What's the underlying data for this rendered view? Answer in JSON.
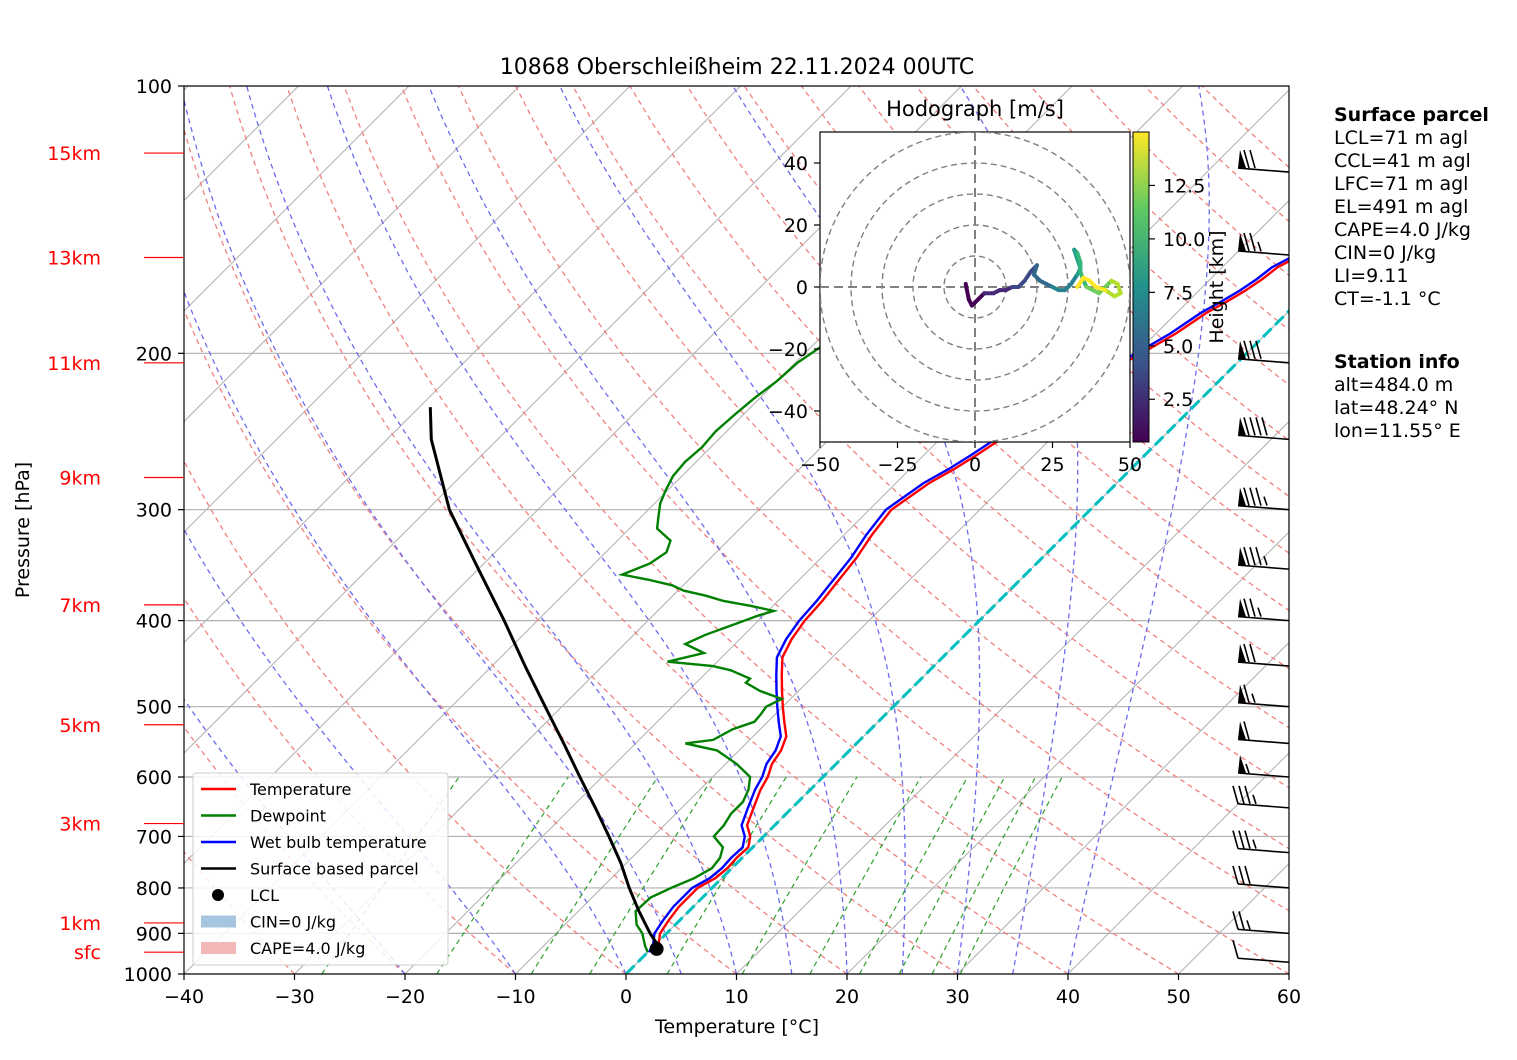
{
  "chart_data": {
    "type": "skew-t log-p sounding",
    "title": "10868 Oberschleißheim 22.11.2024 00UTC",
    "xlabel": "Temperature [°C]",
    "ylabel": "Pressure [hPa]",
    "x_range": [
      -40,
      60
    ],
    "pressure_range_hpa": [
      1000,
      100
    ],
    "y_scale": "log",
    "x_ticks": [
      "−40",
      "−30",
      "−20",
      "−10",
      "0",
      "10",
      "20",
      "30",
      "40",
      "50",
      "60"
    ],
    "y_ticks": [
      "100",
      "200",
      "300",
      "400",
      "500",
      "600",
      "700",
      "800",
      "900",
      "1000"
    ],
    "height_labels": [
      {
        "label": "15km",
        "pressure": 119
      },
      {
        "label": "13km",
        "pressure": 156
      },
      {
        "label": "11km",
        "pressure": 205
      },
      {
        "label": "9km",
        "pressure": 276
      },
      {
        "label": "7km",
        "pressure": 384
      },
      {
        "label": "5km",
        "pressure": 524
      },
      {
        "label": "3km",
        "pressure": 677
      },
      {
        "label": "1km",
        "pressure": 876
      },
      {
        "label": "sfc",
        "pressure": 945
      }
    ],
    "temperature": [
      [
        945,
        0.6
      ],
      [
        930,
        0.4
      ],
      [
        900,
        -0.6
      ],
      [
        870,
        -1.0
      ],
      [
        840,
        -1.3
      ],
      [
        800,
        -1.3
      ],
      [
        780,
        -0.6
      ],
      [
        760,
        -0.4
      ],
      [
        740,
        -0.5
      ],
      [
        720,
        -0.4
      ],
      [
        700,
        -1.2
      ],
      [
        680,
        -2.5
      ],
      [
        650,
        -3.5
      ],
      [
        620,
        -4.5
      ],
      [
        600,
        -5.0
      ],
      [
        580,
        -5.8
      ],
      [
        560,
        -6.2
      ],
      [
        540,
        -7.0
      ],
      [
        520,
        -8.5
      ],
      [
        500,
        -10.0
      ],
      [
        480,
        -11.5
      ],
      [
        460,
        -13.0
      ],
      [
        440,
        -14.5
      ],
      [
        420,
        -15.3
      ],
      [
        400,
        -15.8
      ],
      [
        380,
        -16.0
      ],
      [
        360,
        -16.4
      ],
      [
        340,
        -16.8
      ],
      [
        320,
        -17.5
      ],
      [
        300,
        -18.0
      ],
      [
        290,
        -17.5
      ],
      [
        280,
        -17.0
      ],
      [
        270,
        -16.0
      ],
      [
        260,
        -15.2
      ],
      [
        250,
        -14.5
      ],
      [
        240,
        -13.8
      ],
      [
        230,
        -12.8
      ],
      [
        220,
        -12.0
      ],
      [
        210,
        -11.0
      ],
      [
        200,
        -9.5
      ],
      [
        190,
        -8.2
      ],
      [
        180,
        -7.3
      ],
      [
        175,
        -6.5
      ],
      [
        170,
        -5.8
      ],
      [
        165,
        -5.3
      ],
      [
        160,
        -5.0
      ],
      [
        155,
        -4.0
      ],
      [
        150,
        -3.5
      ],
      [
        145,
        -4.0
      ],
      [
        140,
        -4.5
      ],
      [
        135,
        -4.9
      ],
      [
        130,
        -5.6
      ],
      [
        125,
        -6.2
      ],
      [
        120,
        -7.2
      ],
      [
        116,
        -7.8
      ]
    ],
    "dewpoint": [
      [
        945,
        0.0
      ],
      [
        930,
        -0.8
      ],
      [
        900,
        -2.2
      ],
      [
        880,
        -3.5
      ],
      [
        850,
        -4.8
      ],
      [
        820,
        -4.7
      ],
      [
        800,
        -3.7
      ],
      [
        780,
        -2.5
      ],
      [
        760,
        -1.8
      ],
      [
        740,
        -2.0
      ],
      [
        720,
        -2.7
      ],
      [
        700,
        -4.5
      ],
      [
        680,
        -4.6
      ],
      [
        660,
        -5.0
      ],
      [
        640,
        -5.0
      ],
      [
        620,
        -5.6
      ],
      [
        600,
        -6.6
      ],
      [
        580,
        -9.0
      ],
      [
        560,
        -12.0
      ],
      [
        550,
        -15.5
      ],
      [
        545,
        -13.3
      ],
      [
        530,
        -12.5
      ],
      [
        520,
        -11.2
      ],
      [
        510,
        -11.3
      ],
      [
        500,
        -11.5
      ],
      [
        490,
        -10.8
      ],
      [
        480,
        -13.5
      ],
      [
        470,
        -15.5
      ],
      [
        465,
        -15.5
      ],
      [
        455,
        -18.0
      ],
      [
        450,
        -20.0
      ],
      [
        445,
        -24.5
      ],
      [
        435,
        -22.0
      ],
      [
        425,
        -24.5
      ],
      [
        415,
        -23.5
      ],
      [
        405,
        -22.0
      ],
      [
        395,
        -20.5
      ],
      [
        390,
        -19.5
      ],
      [
        385,
        -22.0
      ],
      [
        380,
        -25.0
      ],
      [
        375,
        -27.0
      ],
      [
        370,
        -29.5
      ],
      [
        365,
        -31.0
      ],
      [
        360,
        -33.5
      ],
      [
        355,
        -36.5
      ],
      [
        345,
        -35.0
      ],
      [
        335,
        -34.5
      ],
      [
        325,
        -35.2
      ],
      [
        315,
        -37.5
      ],
      [
        305,
        -38.5
      ],
      [
        295,
        -39.5
      ],
      [
        285,
        -40.2
      ],
      [
        275,
        -40.8
      ],
      [
        265,
        -41.0
      ],
      [
        255,
        -40.8
      ],
      [
        245,
        -41.0
      ],
      [
        235,
        -40.8
      ],
      [
        225,
        -40.5
      ],
      [
        215,
        -40.0
      ],
      [
        205,
        -39.8
      ],
      [
        195,
        -39.0
      ],
      [
        185,
        -38.2
      ],
      [
        175,
        -37.5
      ],
      [
        165,
        -36.5
      ],
      [
        155,
        -35.8
      ],
      [
        145,
        -35.2
      ],
      [
        135,
        -34.5
      ],
      [
        125,
        -33.2
      ],
      [
        116,
        -31.5
      ]
    ],
    "parcel": [
      [
        945,
        0.6
      ],
      [
        930,
        0.4
      ],
      [
        900,
        -1.5
      ],
      [
        850,
        -4.5
      ],
      [
        800,
        -7.5
      ],
      [
        750,
        -10.5
      ],
      [
        700,
        -14.0
      ],
      [
        650,
        -17.8
      ],
      [
        600,
        -22.0
      ],
      [
        550,
        -26.5
      ],
      [
        500,
        -31.5
      ],
      [
        450,
        -37.0
      ],
      [
        400,
        -43.0
      ],
      [
        350,
        -50.0
      ],
      [
        300,
        -58.0
      ],
      [
        250,
        -66.0
      ],
      [
        230,
        -69.0
      ]
    ],
    "lcl": {
      "pressure": 937,
      "temperature": 0.5
    },
    "freezing_level_line": {
      "from": [
        1000,
        0
      ],
      "to": [
        125,
        0
      ]
    },
    "wind_barbs": [
      {
        "pressure": 125,
        "speed_kt": 70
      },
      {
        "pressure": 155,
        "speed_kt": 75
      },
      {
        "pressure": 205,
        "speed_kt": 80
      },
      {
        "pressure": 250,
        "speed_kt": 90
      },
      {
        "pressure": 300,
        "speed_kt": 85
      },
      {
        "pressure": 350,
        "speed_kt": 85
      },
      {
        "pressure": 400,
        "speed_kt": 75
      },
      {
        "pressure": 450,
        "speed_kt": 70
      },
      {
        "pressure": 500,
        "speed_kt": 65
      },
      {
        "pressure": 550,
        "speed_kt": 60
      },
      {
        "pressure": 600,
        "speed_kt": 55
      },
      {
        "pressure": 650,
        "speed_kt": 35
      },
      {
        "pressure": 730,
        "speed_kt": 35
      },
      {
        "pressure": 800,
        "speed_kt": 30
      },
      {
        "pressure": 900,
        "speed_kt": 25
      },
      {
        "pressure": 970,
        "speed_kt": 10
      }
    ],
    "legend": {
      "placement": "lower-left",
      "entries": [
        {
          "label": "Temperature",
          "color": "#ff0000",
          "kind": "line"
        },
        {
          "label": "Dewpoint",
          "color": "#008000",
          "kind": "line"
        },
        {
          "label": "Wet bulb temperature",
          "color": "#0000ff",
          "kind": "line"
        },
        {
          "label": "Surface based parcel",
          "color": "#000000",
          "kind": "line"
        },
        {
          "label": "LCL",
          "color": "#000000",
          "kind": "dot"
        },
        {
          "label": "CIN=0 J/kg",
          "color": "#a7c4e0",
          "kind": "patch"
        },
        {
          "label": "CAPE=4.0 J/kg",
          "color": "#f2b8b8",
          "kind": "patch"
        }
      ]
    },
    "hodograph": {
      "title": "Hodograph [m/s]",
      "x_range": [
        -50,
        50
      ],
      "y_range": [
        -50,
        50
      ],
      "x_ticks": [
        "−50",
        "−25",
        "0",
        "25",
        "50"
      ],
      "y_ticks": [
        "40",
        "20",
        "0",
        "−20",
        "−40"
      ],
      "rings": [
        10,
        20,
        30,
        40,
        50
      ],
      "colorbar_label": "Height [km]",
      "colorbar_ticks": [
        "2.5",
        "5.0",
        "7.5",
        "10.0",
        "12.5"
      ],
      "colorbar_range": [
        0.5,
        15
      ],
      "trace": [
        [
          -3,
          1
        ],
        [
          -2,
          -4
        ],
        [
          -1,
          -6
        ],
        [
          1,
          -4
        ],
        [
          3,
          -2
        ],
        [
          6,
          -2
        ],
        [
          8,
          -1
        ],
        [
          10,
          -1
        ],
        [
          12,
          0
        ],
        [
          14,
          0
        ],
        [
          16,
          2
        ],
        [
          18,
          5
        ],
        [
          20,
          7
        ],
        [
          19,
          4
        ],
        [
          21,
          2
        ],
        [
          23,
          1
        ],
        [
          25,
          0
        ],
        [
          27,
          -1
        ],
        [
          29,
          -1
        ],
        [
          31,
          1
        ],
        [
          33,
          4
        ],
        [
          34,
          6
        ],
        [
          33,
          9
        ],
        [
          32,
          12
        ],
        [
          33,
          11
        ],
        [
          34,
          8
        ],
        [
          34,
          5
        ],
        [
          35,
          2
        ],
        [
          36,
          0
        ],
        [
          38,
          -1
        ],
        [
          40,
          -2
        ],
        [
          42,
          0
        ],
        [
          44,
          2
        ],
        [
          46,
          1
        ],
        [
          47,
          -2
        ],
        [
          45,
          -3
        ],
        [
          42,
          -1
        ],
        [
          39,
          0
        ],
        [
          37,
          2
        ],
        [
          35,
          3
        ],
        [
          33,
          0
        ]
      ]
    }
  },
  "surface_parcel": {
    "heading": "Surface parcel",
    "lines": [
      "LCL=71 m agl",
      "CCL=41 m agl",
      "LFC=71 m agl",
      "EL=491 m agl",
      "CAPE=4.0 J/kg",
      "CIN=0 J/kg",
      "LI=9.11",
      "CT=-1.1 °C"
    ]
  },
  "station_info": {
    "heading": "Station info",
    "lines": [
      "alt=484.0 m",
      "lat=48.24° N",
      "lon=11.55° E"
    ]
  }
}
